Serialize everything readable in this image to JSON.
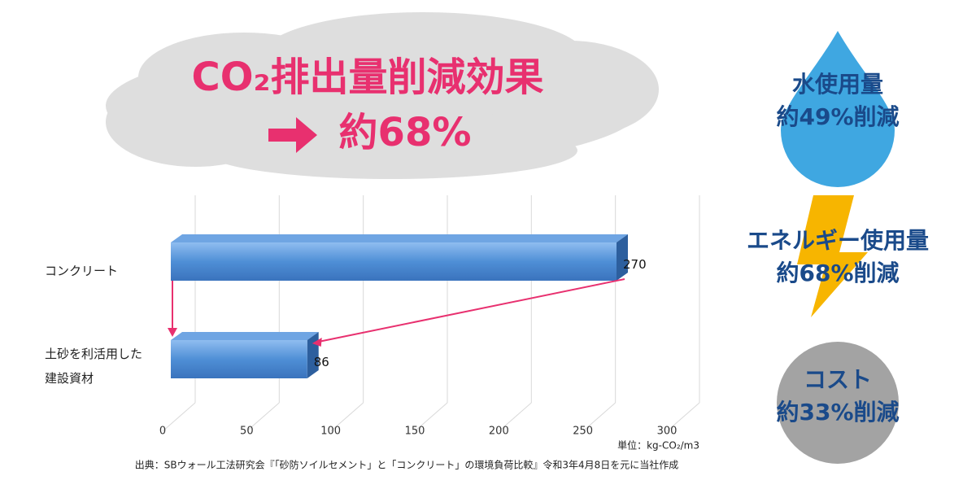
{
  "headline": {
    "title": "CO₂排出量削減効果",
    "value": "約68%"
  },
  "chart_data": {
    "type": "bar",
    "orientation": "horizontal",
    "categories": [
      "コンクリート",
      "土砂を利活用した建設資材"
    ],
    "values": [
      270,
      86
    ],
    "color": "#4f8fd6",
    "xlim": [
      0,
      300
    ],
    "xticks": [
      0,
      50,
      100,
      150,
      200,
      250,
      300
    ],
    "grid": true
  },
  "unit": "単位：kg-CO₂/m3",
  "source": "出典：SBウォール工法研究会『「砂防ソイルセメント」と「コンクリート」の環境負荷比較』令和3年4月8日を元に当社作成",
  "effects": [
    {
      "label": "水使用量",
      "value": "約49%削減"
    },
    {
      "label": "エネルギー使用量",
      "value": "約68%削減"
    },
    {
      "label": "コスト",
      "value": "約33%削減"
    }
  ]
}
